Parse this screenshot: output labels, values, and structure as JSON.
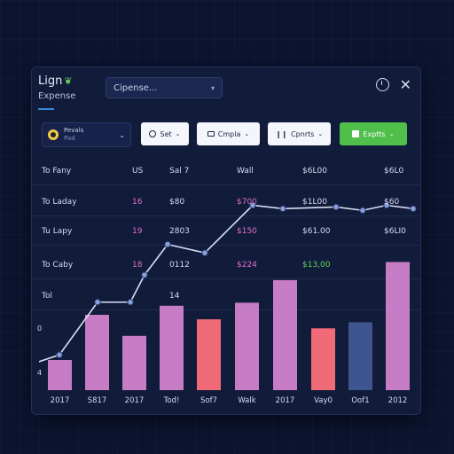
{
  "header": {
    "title": "Lign",
    "subtitle": "Expense",
    "search_value": "Cipense...",
    "clock_icon": "clock-icon",
    "close_icon": "close-icon"
  },
  "toolbar": {
    "user": {
      "name": "Pevals",
      "sub": "Pad"
    },
    "set_label": "Set",
    "compare1_label": "Cmpla",
    "compare2_label": "Cpnrts",
    "export_label": "Exptts"
  },
  "table": {
    "rows": [
      {
        "label": "To Fany",
        "c1": "US",
        "c2": "Sal 7",
        "c3": "Wall",
        "c4": "$6L00",
        "c5": "$6L0"
      },
      {
        "label": "To Laday",
        "c1": "16",
        "c2": "$80",
        "c3": "$700",
        "c4": "$1L00",
        "c5": "$60"
      },
      {
        "label": "Tu Lapy",
        "c1": "19",
        "c2": "2803",
        "c3": "$150",
        "c4": "$61.00",
        "c5": "$6LI0"
      },
      {
        "label": "To Caby",
        "c1": "18",
        "c2": "0112",
        "c3": "$224",
        "c4": "$13,00",
        "c5": ""
      },
      {
        "label": "Tol",
        "c1": "",
        "c2": "14",
        "c3": "",
        "c4": "",
        "c5": ""
      }
    ],
    "y_labels": [
      "0",
      "4"
    ]
  },
  "colors": {
    "purple": "#c77cc6",
    "coral": "#f06a78",
    "navy": "#3e5590",
    "line": "#d8e0f5",
    "accent_green": "#4fbf4a"
  },
  "chart_data": {
    "type": "bar",
    "categories": [
      "2017",
      "S817",
      "2017",
      "Tod!",
      "Sof7",
      "Walk",
      "2017",
      "Vay0",
      "Oof1",
      "2012"
    ],
    "bars": [
      {
        "value": 20,
        "color": "purple"
      },
      {
        "value": 50,
        "color": "purple"
      },
      {
        "value": 36,
        "color": "purple"
      },
      {
        "value": 56,
        "color": "purple"
      },
      {
        "value": 47,
        "color": "coral"
      },
      {
        "value": 58,
        "color": "purple"
      },
      {
        "value": 73,
        "color": "purple"
      },
      {
        "value": 41,
        "color": "coral"
      },
      {
        "value": 45,
        "color": "navy"
      },
      {
        "value": 85,
        "color": "purple"
      }
    ],
    "line": [
      22,
      26,
      57,
      57,
      73,
      91,
      86,
      114,
      112,
      113,
      111,
      114,
      112
    ],
    "ylim": [
      0,
      100
    ]
  }
}
